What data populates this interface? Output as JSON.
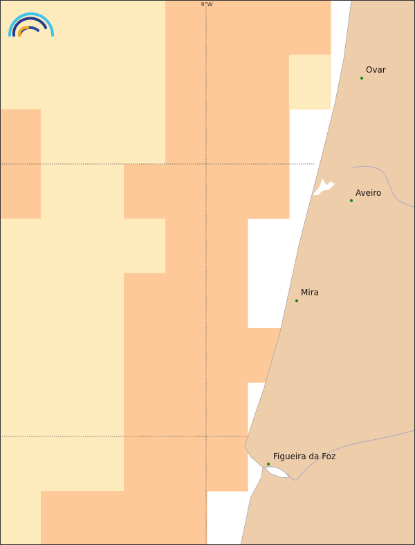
{
  "map": {
    "graticule_label": "9°W",
    "colors": {
      "low": "#feebbd",
      "high": "#fec998",
      "land": "#eecdaa",
      "sea_nodata": "#ffffff",
      "town": "#0a8a0a",
      "river": "#a8a8c0"
    },
    "grid_levels": [
      [
        "low",
        "low",
        "low",
        "low",
        "high",
        "high",
        "high",
        "high"
      ],
      [
        "low",
        "low",
        "low",
        "low",
        "high",
        "high",
        "high",
        "low"
      ],
      [
        "high",
        "low",
        "low",
        "low",
        "high",
        "high",
        "high",
        "none"
      ],
      [
        "high",
        "low",
        "low",
        "high",
        "high",
        "high",
        "high",
        "none"
      ],
      [
        "low",
        "low",
        "low",
        "low",
        "high",
        "high",
        "none",
        "none"
      ],
      [
        "low",
        "low",
        "low",
        "high",
        "high",
        "high",
        "none",
        "none"
      ],
      [
        "low",
        "low",
        "low",
        "high",
        "high",
        "high",
        "high",
        "none"
      ],
      [
        "low",
        "low",
        "low",
        "high",
        "high",
        "high",
        "none",
        "none"
      ],
      [
        "low",
        "low",
        "low",
        "high",
        "high",
        "high",
        "none",
        "none"
      ],
      [
        "low",
        "high",
        "high",
        "high",
        "high",
        "none",
        "none",
        "none"
      ]
    ],
    "towns": [
      {
        "name": "Ovar"
      },
      {
        "name": "Aveiro"
      },
      {
        "name": "Mira"
      },
      {
        "name": "Figueira da Foz"
      }
    ],
    "logo": "rainbow-arcs-logo"
  }
}
